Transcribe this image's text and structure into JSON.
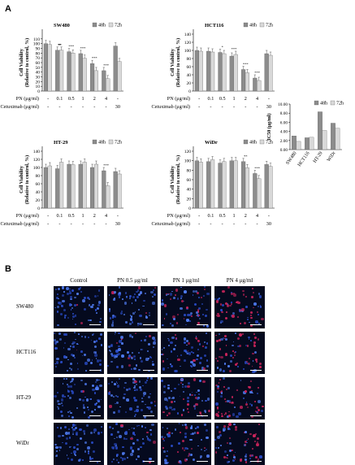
{
  "figure": {
    "panel_a_label": "A",
    "panel_b_label": "B"
  },
  "legend_labels": [
    "48h",
    "72h"
  ],
  "colors": {
    "series48": "#8c8c8c",
    "series72": "#d9d9d9",
    "stroke": "#555555"
  },
  "chart_data": [
    {
      "type": "bar",
      "title": "SW480",
      "ylabel_line1": "Cell Viability",
      "ylabel_line2": "(Relative to control, %)",
      "ylim": [
        0,
        120
      ],
      "yticks": [
        0,
        10,
        20,
        30,
        40,
        50,
        60,
        70,
        80,
        90,
        100,
        110
      ],
      "categories_pn": [
        "-",
        "0.1",
        "0.5",
        "1",
        "2",
        "4",
        "-"
      ],
      "categories_cetuximab": [
        "-",
        "-",
        "-",
        "-",
        "-",
        "-",
        "30"
      ],
      "row_labels": [
        "PN (μg/ml)",
        "Cetuximab (μg/ml)"
      ],
      "series": [
        {
          "name": "48h",
          "values": [
            100,
            86,
            83,
            79,
            58,
            43,
            95
          ]
        },
        {
          "name": "72h",
          "values": [
            98,
            86,
            80,
            69,
            43,
            26,
            62
          ]
        }
      ],
      "annotations": [
        "*",
        "**",
        "**",
        "***",
        "***",
        "***",
        "***"
      ]
    },
    {
      "type": "bar",
      "title": "HCT116",
      "ylabel_line1": "Cell Viability",
      "ylabel_line2": "(Relative to control, %)",
      "ylim": [
        0,
        140
      ],
      "yticks": [
        0,
        20,
        40,
        60,
        80,
        100,
        120,
        140
      ],
      "categories_pn": [
        "-",
        "0.1",
        "0.5",
        "1",
        "2",
        "4",
        "-"
      ],
      "categories_cetuximab": [
        "-",
        "-",
        "-",
        "-",
        "-",
        "-",
        "30"
      ],
      "row_labels": [
        "PN (μg/ml)",
        "Cetuximab (μg/ml)"
      ],
      "series": [
        {
          "name": "48h",
          "values": [
            100,
            98,
            95,
            86,
            53,
            32,
            92
          ]
        },
        {
          "name": "72h",
          "values": [
            98,
            96,
            92,
            90,
            45,
            26,
            88
          ]
        }
      ],
      "annotations": [
        "*",
        "***",
        "***",
        "***"
      ]
    },
    {
      "type": "bar",
      "title": "HT-29",
      "ylabel_line1": "Cell Viability",
      "ylabel_line2": "(Relative to control, %)",
      "ylim": [
        0,
        140
      ],
      "yticks": [
        0,
        20,
        40,
        60,
        80,
        100,
        120,
        140
      ],
      "categories_pn": [
        "-",
        "0.1",
        "0.5",
        "1",
        "2",
        "4",
        "-"
      ],
      "categories_cetuximab": [
        "-",
        "-",
        "-",
        "-",
        "-",
        "-",
        "30"
      ],
      "row_labels": [
        "PN (μg/ml)",
        "Cetuximab (μg/ml)"
      ],
      "series": [
        {
          "name": "48h",
          "values": [
            100,
            97,
            108,
            108,
            100,
            92,
            90
          ]
        },
        {
          "name": "72h",
          "values": [
            104,
            113,
            107,
            113,
            108,
            55,
            84
          ]
        }
      ],
      "annotations": [
        "***"
      ]
    },
    {
      "type": "bar",
      "title": "WiDr",
      "ylabel_line1": "Cell Viability",
      "ylabel_line2": "(Relative to control, %)",
      "ylim": [
        0,
        120
      ],
      "yticks": [
        0,
        20,
        40,
        60,
        80,
        100,
        120
      ],
      "categories_pn": [
        "-",
        "0.1",
        "0.5",
        "1",
        "2",
        "4",
        "-"
      ],
      "categories_cetuximab": [
        "-",
        "-",
        "-",
        "-",
        "-",
        "-",
        "30"
      ],
      "row_labels": [
        "PN (μg/ml)",
        "Cetuximab (μg/ml)"
      ],
      "series": [
        {
          "name": "48h",
          "values": [
            100,
            98,
            95,
            100,
            98,
            73,
            92
          ]
        },
        {
          "name": "72h",
          "values": [
            97,
            102,
            98,
            100,
            85,
            62,
            88
          ]
        }
      ],
      "annotations": [
        "**",
        "***"
      ]
    },
    {
      "type": "bar",
      "title": "",
      "ylabel": "IC50 (μg/ml)",
      "ylim": [
        0,
        10
      ],
      "yticks": [
        "0.00",
        "2.00",
        "4.00",
        "6.00",
        "8.00",
        "10.00"
      ],
      "categories": [
        "SW480",
        "HCT116",
        "HT-29",
        "WiDr"
      ],
      "series": [
        {
          "name": "48h",
          "values": [
            3.0,
            2.6,
            8.3,
            5.8
          ]
        },
        {
          "name": "72h",
          "values": [
            1.8,
            2.7,
            4.2,
            4.7
          ]
        }
      ]
    }
  ],
  "microscopy": {
    "columns": [
      "Control",
      "PN 0.5 μg/ml",
      "PN 1 μg/ml",
      "PN 4 μg/ml"
    ],
    "rows": [
      "SW480",
      "HCT116",
      "HT-29",
      "WiDr"
    ]
  }
}
